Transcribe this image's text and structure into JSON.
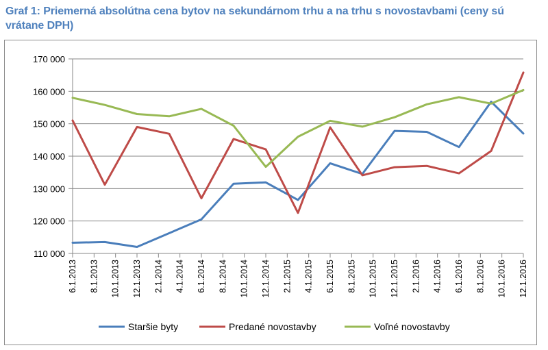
{
  "title": "Graf 1: Priemerná absolútna cena bytov na sekundárnom trhu a na trhu s novostavbami (ceny sú vrátane DPH)",
  "chart_data": {
    "type": "line",
    "title": "Graf 1: Priemerná absolútna cena bytov na sekundárnom trhu a na trhu s novostavbami (ceny sú vrátane DPH)",
    "xlabel": "",
    "ylabel": "",
    "ylim": [
      110000,
      170000
    ],
    "yticks": [
      110000,
      120000,
      130000,
      140000,
      150000,
      160000,
      170000
    ],
    "ytick_labels": [
      "110 000",
      "120 000",
      "130 000",
      "140 000",
      "150 000",
      "160 000",
      "170 000"
    ],
    "grid": true,
    "legend_position": "bottom",
    "categories": [
      "6.1.2013",
      "8.1.2013",
      "10.1.2013",
      "12.1.2013",
      "2.1.2014",
      "4.1.2014",
      "6.1.2014",
      "8.1.2014",
      "10.1.2014",
      "12.1.2014",
      "2.1.2015",
      "4.1.2015",
      "6.1.2015",
      "8.1.2015",
      "10.1.2015",
      "12.1.2015",
      "2.1.2016",
      "4.1.2016",
      "6.1.2016",
      "8.1.2016",
      "10.1.2016",
      "12.1.2016"
    ],
    "series": [
      {
        "name": "Staršie byty",
        "color": "#4a7ebb",
        "points": [
          {
            "i": 0,
            "v": 113300
          },
          {
            "i": 1.5,
            "v": 113500
          },
          {
            "i": 3,
            "v": 112000
          },
          {
            "i": 6,
            "v": 120500
          },
          {
            "i": 7.5,
            "v": 131500
          },
          {
            "i": 9,
            "v": 131900
          },
          {
            "i": 10.5,
            "v": 126500
          },
          {
            "i": 12,
            "v": 137800
          },
          {
            "i": 13.5,
            "v": 134500
          },
          {
            "i": 15,
            "v": 147800
          },
          {
            "i": 16.5,
            "v": 147500
          },
          {
            "i": 18,
            "v": 142800
          },
          {
            "i": 19.5,
            "v": 156800
          },
          {
            "i": 21,
            "v": 147000
          }
        ]
      },
      {
        "name": "Predané novostavby",
        "color": "#be4b48",
        "points": [
          {
            "i": 0,
            "v": 151000
          },
          {
            "i": 1.5,
            "v": 131200
          },
          {
            "i": 3,
            "v": 149000
          },
          {
            "i": 4.5,
            "v": 146900
          },
          {
            "i": 6,
            "v": 127000
          },
          {
            "i": 7.5,
            "v": 145300
          },
          {
            "i": 9,
            "v": 142100
          },
          {
            "i": 10.5,
            "v": 122500
          },
          {
            "i": 12,
            "v": 148900
          },
          {
            "i": 13.5,
            "v": 134100
          },
          {
            "i": 15,
            "v": 136600
          },
          {
            "i": 16.5,
            "v": 137000
          },
          {
            "i": 18,
            "v": 134700
          },
          {
            "i": 19.5,
            "v": 141600
          },
          {
            "i": 21,
            "v": 165800
          }
        ]
      },
      {
        "name": "Voľné novostavby",
        "color": "#98b954",
        "points": [
          {
            "i": 0,
            "v": 158000
          },
          {
            "i": 1.5,
            "v": 155800
          },
          {
            "i": 3,
            "v": 153000
          },
          {
            "i": 4.5,
            "v": 152300
          },
          {
            "i": 6,
            "v": 154600
          },
          {
            "i": 7.5,
            "v": 149400
          },
          {
            "i": 9,
            "v": 136700
          },
          {
            "i": 10.5,
            "v": 146000
          },
          {
            "i": 12,
            "v": 150900
          },
          {
            "i": 13.5,
            "v": 149100
          },
          {
            "i": 15,
            "v": 152000
          },
          {
            "i": 16.5,
            "v": 156000
          },
          {
            "i": 18,
            "v": 158200
          },
          {
            "i": 19.5,
            "v": 156200
          },
          {
            "i": 21,
            "v": 160400
          }
        ]
      }
    ]
  }
}
